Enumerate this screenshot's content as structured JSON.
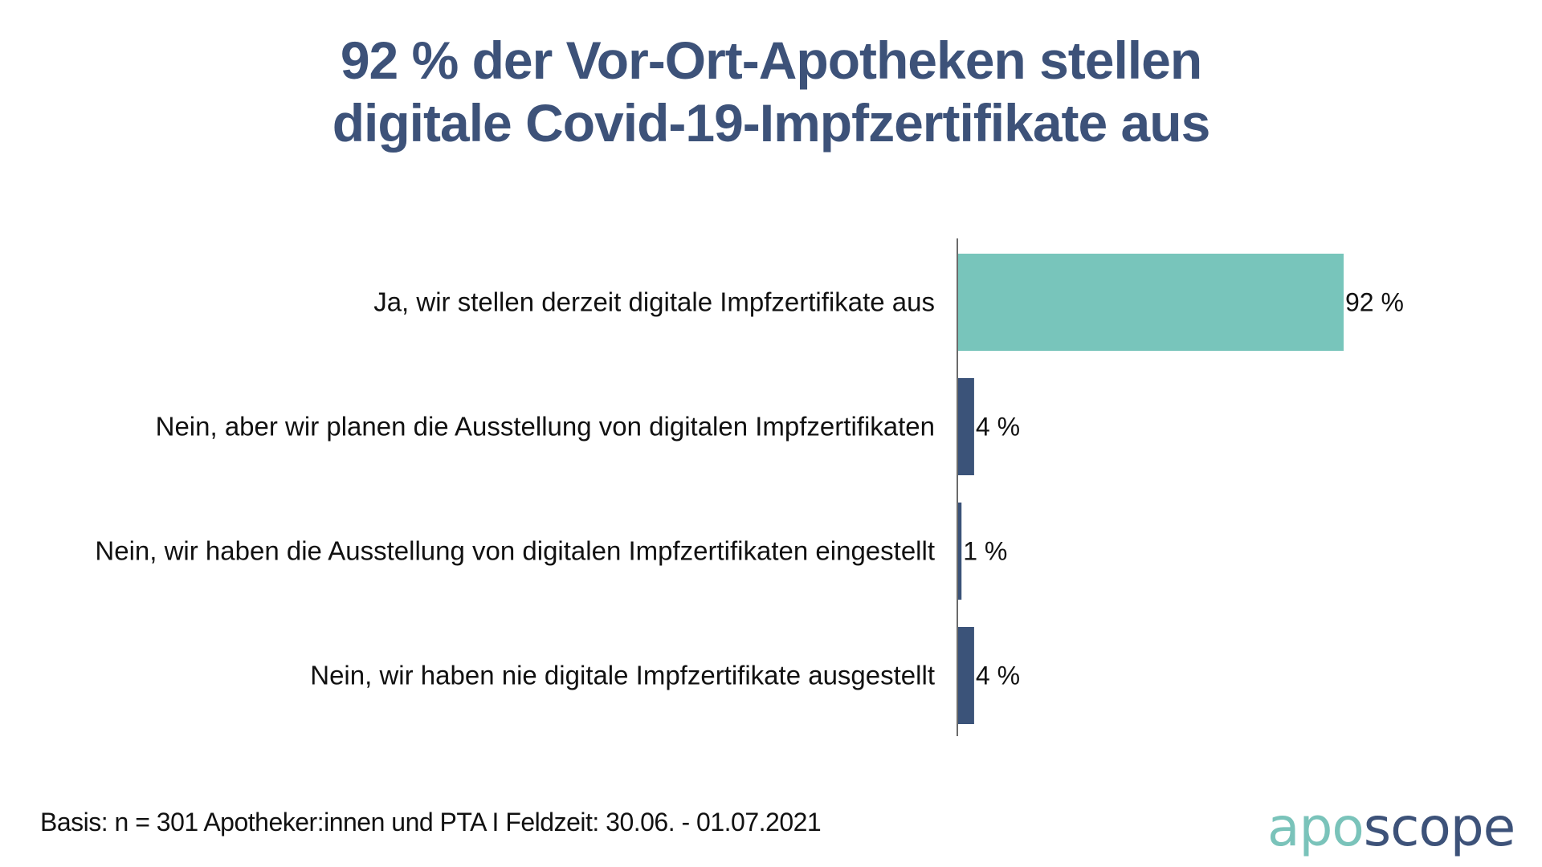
{
  "title": {
    "line1": "92 % der Vor-Ort-Apotheken stellen",
    "line2": "digitale Covid-19-Impfzertifikate aus"
  },
  "chart_data": {
    "type": "bar",
    "orientation": "horizontal",
    "title": "92 % der Vor-Ort-Apotheken stellen digitale Covid-19-Impfzertifikate aus",
    "xlabel": "",
    "ylabel": "",
    "xlim": [
      0,
      100
    ],
    "grid": false,
    "value_suffix": " %",
    "categories": [
      "Ja, wir stellen derzeit digitale Impfzertifikate aus",
      "Nein, aber wir planen die Ausstellung von digitalen Impfzertifikaten",
      "Nein, wir haben die Ausstellung von digitalen Impfzertifikaten eingestellt",
      "Nein, wir haben nie digitale Impfzertifikate ausgestellt"
    ],
    "values": [
      92,
      4,
      1,
      4
    ],
    "value_labels": [
      "92 %",
      "4 %",
      "1 %",
      "4 %"
    ],
    "colors": [
      "#78c5bb",
      "#3b5379",
      "#3b5379",
      "#3b5379"
    ]
  },
  "footnote": "Basis: n = 301 Apotheker:innen und PTA I Feldzeit: 30.06. - 01.07.2021",
  "logo": {
    "part1": "apo",
    "part2": "scope",
    "color1": "#7ac3ba",
    "color2": "#3d5279"
  }
}
